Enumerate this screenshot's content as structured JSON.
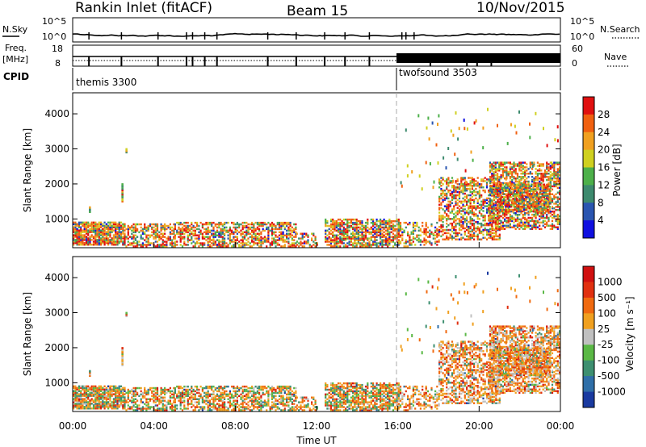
{
  "header": {
    "station": "Rankin Inlet (fitACF)",
    "beam": "Beam 15",
    "date": "10/Nov/2015"
  },
  "panels": {
    "nsky_label": "N.Sky",
    "nsky_ticks": [
      "10^5",
      "10^0"
    ],
    "nsearch_label": "N.Search",
    "nsearch_ticks": [
      "10^5",
      "10^0"
    ],
    "freq_label_1": "Freq.",
    "freq_label_2": "[MHz]",
    "freq_ticks": [
      "18",
      "8"
    ],
    "nave_label": "Nave",
    "nave_ticks": [
      "60",
      "0"
    ],
    "cpid_label": "CPID",
    "cpid_modes": [
      "themis 3300",
      "twofsound 3503"
    ]
  },
  "chart_data": [
    {
      "type": "heatmap",
      "ylabel": "Slant Range [km]",
      "ylim": [
        180,
        4600
      ],
      "yticks": [
        1000,
        2000,
        3000,
        4000
      ],
      "colorbar": {
        "label": "Power [dB]",
        "ticks": [
          "28",
          "24",
          "20",
          "16",
          "12",
          "8",
          "4"
        ],
        "colors": [
          "#1010e0",
          "#2a55b0",
          "#3d8a6e",
          "#4db04a",
          "#cfd020",
          "#f0a020",
          "#f06010",
          "#e01010"
        ]
      }
    },
    {
      "type": "heatmap",
      "ylabel": "Slant Range [km]",
      "ylim": [
        180,
        4600
      ],
      "yticks": [
        1000,
        2000,
        3000,
        4000
      ],
      "xlabel": "Time UT",
      "xticks": [
        "00:00",
        "04:00",
        "08:00",
        "12:00",
        "16:00",
        "20:00",
        "00:00"
      ],
      "colorbar": {
        "label": "Velocity [m s⁻¹]",
        "ticks": [
          "1000",
          "500",
          "100",
          "25",
          "-25",
          "-100",
          "-500",
          "-1000"
        ],
        "colors": [
          "#1a3aa0",
          "#2f6fa8",
          "#3d8f70",
          "#5ab845",
          "#c0c0c0",
          "#f0a020",
          "#f06a10",
          "#e03010",
          "#d01010"
        ]
      }
    }
  ]
}
